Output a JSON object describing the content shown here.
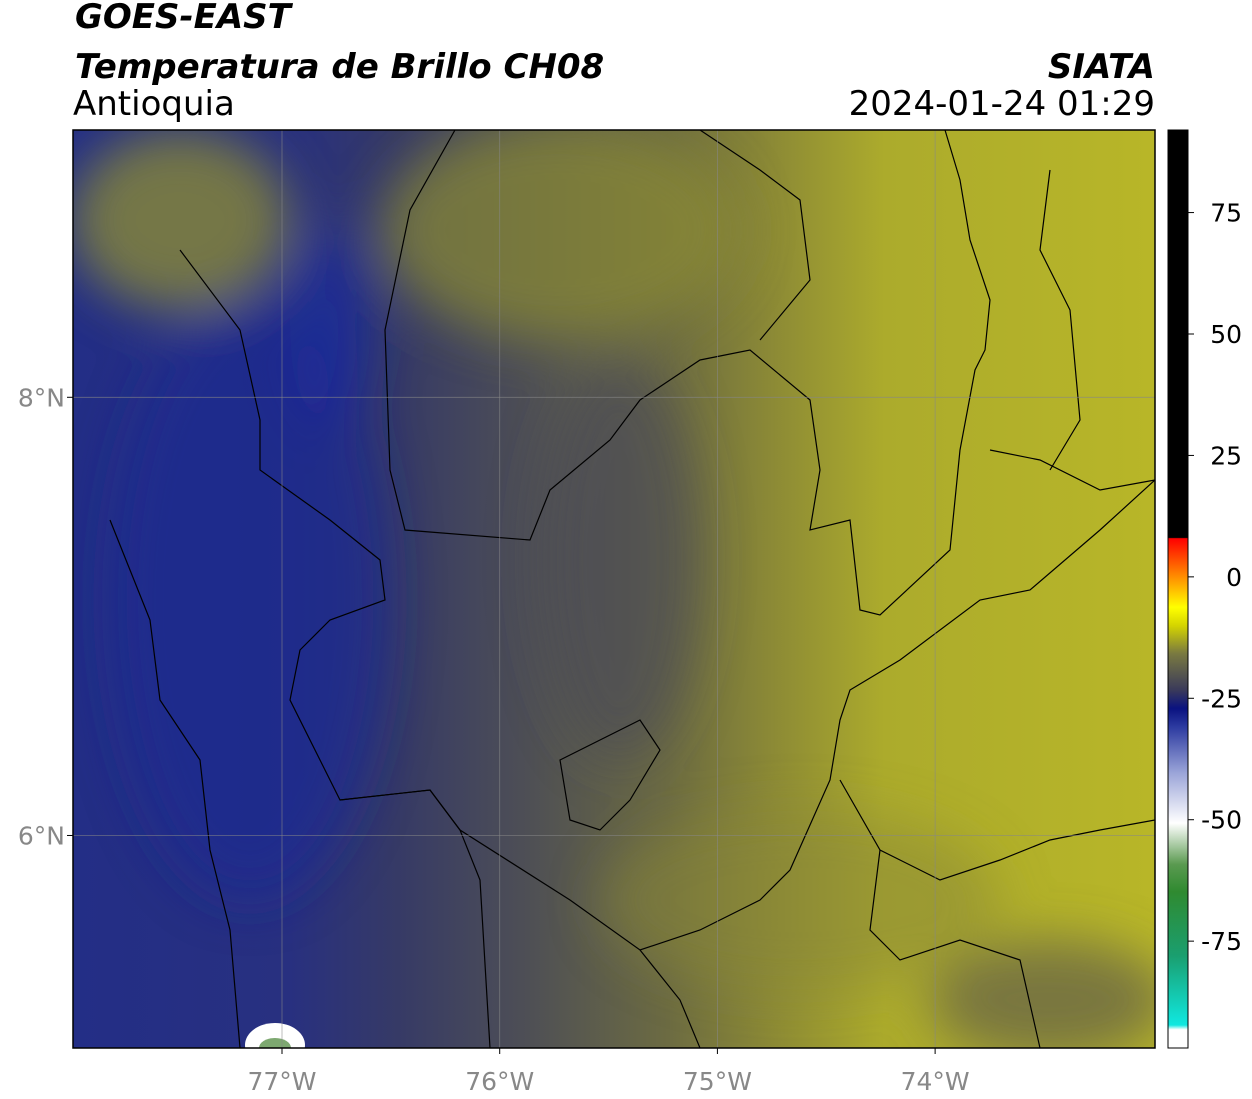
{
  "header": {
    "satellite": "GOES-EAST",
    "product": "Temperatura de Brillo CH08",
    "region": "Antioquia",
    "source": "SIATA",
    "datetime": "2024-01-24 01:29"
  },
  "map": {
    "xlim": [
      -77.96,
      -72.99
    ],
    "ylim": [
      5.03,
      9.22
    ],
    "xticks": [
      {
        "value": -77,
        "label": "77°W"
      },
      {
        "value": -76,
        "label": "76°W"
      },
      {
        "value": -75,
        "label": "75°W"
      },
      {
        "value": -74,
        "label": "74°W"
      }
    ],
    "yticks": [
      {
        "value": 8,
        "label": "8°N"
      },
      {
        "value": 6,
        "label": "6°N"
      }
    ],
    "grid": true
  },
  "colorbar": {
    "lim": [
      -97,
      92
    ],
    "ticks": [
      75,
      50,
      25,
      0,
      -25,
      -50,
      -75
    ]
  }
}
